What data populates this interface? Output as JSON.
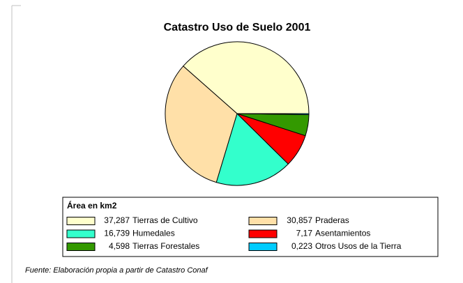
{
  "chart_data": {
    "type": "pie",
    "title": "Catastro Uso de Suelo 2001",
    "legend_title": "Área en km2",
    "categories": [
      "Tierras de Cultivo",
      "Praderas",
      "Humedales",
      "Asentamientos",
      "Tierras Forestales",
      "Otros Usos de la Tierra"
    ],
    "values": [
      37.287,
      30.857,
      16.739,
      7.17,
      4.598,
      0.223
    ],
    "value_labels": [
      "37,287",
      "30,857",
      "16,739",
      "7,17",
      "4,598",
      "0,223"
    ],
    "colors": [
      "#ffffcc",
      "#ffe0a8",
      "#33ffcc",
      "#ff0000",
      "#339900",
      "#00ccff"
    ],
    "source": "Fuente: Elaboración propia a partir de Catastro Conaf"
  }
}
